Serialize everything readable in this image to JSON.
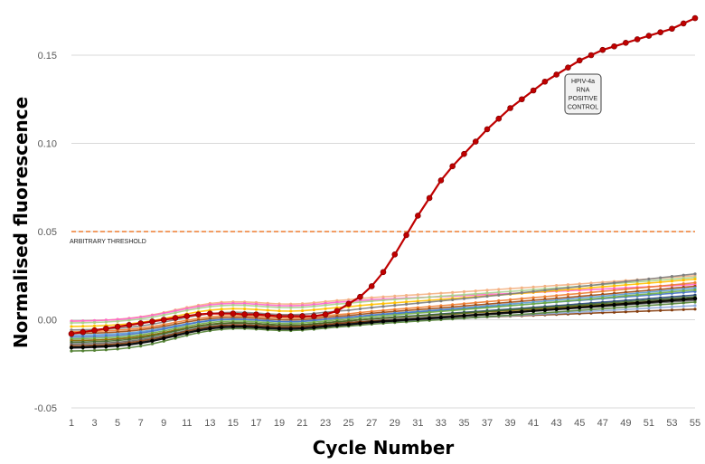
{
  "chart_data": {
    "type": "line",
    "xlabel": "Cycle Number",
    "ylabel": "Normalised fluorescence",
    "xlim": [
      1,
      55
    ],
    "ylim": [
      -0.05,
      0.15
    ],
    "x_ticks": [
      "1",
      "3",
      "5",
      "7",
      "9",
      "11",
      "13",
      "15",
      "17",
      "19",
      "21",
      "23",
      "25",
      "27",
      "29",
      "31",
      "33",
      "35",
      "37",
      "39",
      "41",
      "43",
      "45",
      "47",
      "49",
      "51",
      "53",
      "55"
    ],
    "y_ticks": [
      "-0.05",
      "0.00",
      "0.05",
      "0.10",
      "0.15"
    ],
    "grid": "horizontal",
    "threshold": {
      "value": 0.05,
      "label": "ARBITRARY THRESHOLD",
      "color": "#ED7D31"
    },
    "annotation": {
      "lines": [
        "HPIV-4a",
        "RNA",
        "POSITIVE",
        "CONTROL"
      ]
    },
    "positive_control": {
      "color": "#C00000",
      "values": [
        -0.008,
        -0.007,
        -0.006,
        -0.005,
        -0.004,
        -0.003,
        -0.002,
        -0.001,
        0.0,
        0.001,
        0.002,
        0.003,
        0.0035,
        0.0035,
        0.0035,
        0.003,
        0.003,
        0.0025,
        0.002,
        0.002,
        0.002,
        0.002,
        0.003,
        0.005,
        0.009,
        0.013,
        0.019,
        0.027,
        0.037,
        0.048,
        0.059,
        0.069,
        0.079,
        0.087,
        0.094,
        0.101,
        0.108,
        0.114,
        0.12,
        0.125,
        0.13,
        0.135,
        0.139,
        0.143,
        0.147,
        0.15,
        0.153,
        0.155,
        0.157,
        0.159,
        0.161,
        0.163,
        0.165,
        0.168,
        0.171
      ]
    },
    "series": [
      {
        "color": "#F4B183",
        "start": -0.001,
        "mid": 0.012,
        "end": 0.025
      },
      {
        "color": "#FF66CC",
        "start": -0.001,
        "mid": 0.011,
        "end": 0.02
      },
      {
        "color": "#A9D18E",
        "start": -0.002,
        "mid": 0.01,
        "end": 0.024
      },
      {
        "color": "#FFC000",
        "start": -0.004,
        "mid": 0.008,
        "end": 0.023
      },
      {
        "color": "#7F7F7F",
        "start": -0.006,
        "mid": 0.006,
        "end": 0.026
      },
      {
        "color": "#ED7D31",
        "start": -0.007,
        "mid": 0.004,
        "end": 0.021
      },
      {
        "color": "#9E480E",
        "start": -0.008,
        "mid": 0.003,
        "end": 0.019
      },
      {
        "color": "#5B9BD5",
        "start": -0.009,
        "mid": 0.002,
        "end": 0.018
      },
      {
        "color": "#4472C4",
        "start": -0.01,
        "mid": 0.002,
        "end": 0.016
      },
      {
        "color": "#70AD47",
        "start": -0.011,
        "mid": 0.001,
        "end": 0.017
      },
      {
        "color": "#264478",
        "start": -0.012,
        "mid": 0.0,
        "end": 0.014
      },
      {
        "color": "#997300",
        "start": -0.012,
        "mid": 0.0,
        "end": 0.012
      },
      {
        "color": "#43682B",
        "start": -0.013,
        "mid": 0.0,
        "end": 0.013
      },
      {
        "color": "#636363",
        "start": -0.014,
        "mid": -0.001,
        "end": 0.011
      },
      {
        "color": "#843C0C",
        "start": -0.015,
        "mid": -0.001,
        "end": 0.006
      },
      {
        "color": "#8FAADC",
        "start": -0.016,
        "mid": -0.002,
        "end": 0.008
      },
      {
        "color": "#548235",
        "start": -0.018,
        "mid": -0.003,
        "end": 0.01
      },
      {
        "color": "#000000",
        "start": -0.016,
        "mid": -0.002,
        "end": 0.012
      }
    ]
  }
}
